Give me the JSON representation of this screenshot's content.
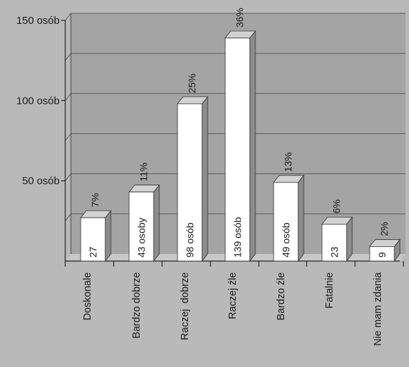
{
  "chart_data": {
    "type": "bar",
    "categories": [
      "Doskonale",
      "Bardzo dobrze",
      "Raczej  dobrze",
      "Raczej źle",
      "Bardzo źle",
      "Fatalnie",
      "Nie mam zdania"
    ],
    "values": [
      27,
      43,
      98,
      139,
      49,
      23,
      9
    ],
    "value_labels": [
      "27",
      "43 osoby",
      "98 osób",
      "139 osób",
      "49 osób",
      "23",
      "9"
    ],
    "percent_labels": [
      "7%",
      "11%",
      "25%",
      "36%",
      "13%",
      "6%",
      "2%"
    ],
    "y_ticks": [
      {
        "value": 50,
        "label": "50 osób"
      },
      {
        "value": 100,
        "label": "100 osób"
      },
      {
        "value": 150,
        "label": "150 osób"
      }
    ],
    "ylim": [
      0,
      150
    ],
    "grid": true,
    "title": "",
    "xlabel": "",
    "ylabel": ""
  },
  "colors": {
    "background": "#b9b9b9",
    "plot_wall": "#a4a4a4",
    "plot_floor": "#c8c8c8",
    "bar_front": "#ffffff",
    "bar_side": "#8c8c8c",
    "bar_top": "#d2d2d2",
    "grid": "#5a5a5a"
  }
}
